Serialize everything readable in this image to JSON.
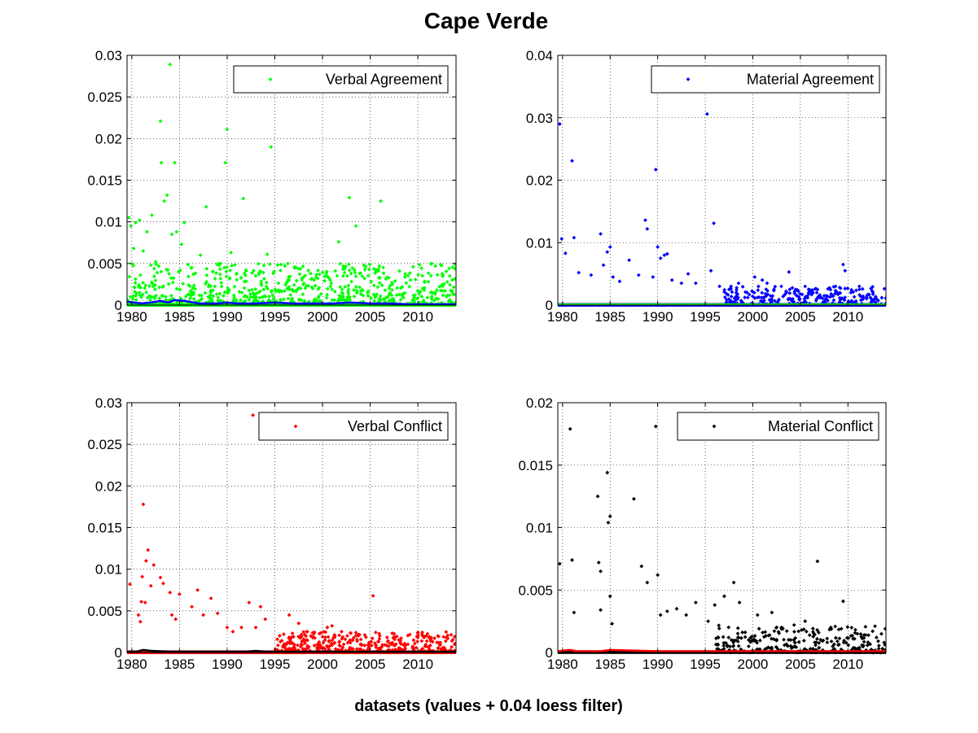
{
  "figure": {
    "title": "Cape Verde",
    "xlabel": "datasets (values + 0.04 loess filter)"
  },
  "chart_data": [
    {
      "type": "scatter",
      "grid": true,
      "legend_position": "top-right",
      "xlim": [
        1979.5,
        2014
      ],
      "ylim": [
        0,
        0.03
      ],
      "xticks": [
        1980,
        1985,
        1990,
        1995,
        2000,
        2005,
        2010
      ],
      "xtick_labels": [
        "1980",
        "1985",
        "1990",
        "1995",
        "2000",
        "2005",
        "2010"
      ],
      "yticks": [
        0,
        0.005,
        0.01,
        0.015,
        0.02,
        0.025,
        0.03
      ],
      "ytick_labels": [
        "0",
        "0.005",
        "0.01",
        "0.015",
        "0.02",
        "0.025",
        "0.03"
      ],
      "series": [
        {
          "name": "Verbal Agreement",
          "color": "#00ff00",
          "marker": "diamond",
          "points": [
            [
              1979.7,
              0.0105
            ],
            [
              1979.9,
              0.0095
            ],
            [
              1980.2,
              0.0068
            ],
            [
              1980.4,
              0.0099
            ],
            [
              1980.8,
              0.0102
            ],
            [
              1981.2,
              0.0065
            ],
            [
              1981.6,
              0.0088
            ],
            [
              1982.1,
              0.0108
            ],
            [
              1982.5,
              0.0052
            ],
            [
              1983.0,
              0.0221
            ],
            [
              1983.1,
              0.0171
            ],
            [
              1983.4,
              0.0125
            ],
            [
              1983.7,
              0.0132
            ],
            [
              1984.0,
              0.0289
            ],
            [
              1984.2,
              0.0085
            ],
            [
              1984.5,
              0.0171
            ],
            [
              1984.7,
              0.0088
            ],
            [
              1985.2,
              0.0073
            ],
            [
              1985.5,
              0.0099
            ],
            [
              1986.3,
              0.0045
            ],
            [
              1987.2,
              0.006
            ],
            [
              1987.8,
              0.0118
            ],
            [
              1988.5,
              0.004
            ],
            [
              1989.3,
              0.005
            ],
            [
              1989.8,
              0.0171
            ],
            [
              1990.0,
              0.0211
            ],
            [
              1990.4,
              0.0063
            ],
            [
              1991.0,
              0.0038
            ],
            [
              1991.7,
              0.0128
            ],
            [
              1993.0,
              0.0035
            ],
            [
              1994.2,
              0.0061
            ],
            [
              1994.6,
              0.019
            ],
            [
              1995.3,
              0.0048
            ],
            [
              1996.5,
              0.003
            ],
            [
              1998.0,
              0.0025
            ],
            [
              1999.5,
              0.0032
            ],
            [
              2000.8,
              0.003
            ],
            [
              2001.7,
              0.0076
            ],
            [
              2002.8,
              0.0129
            ],
            [
              2003.5,
              0.0095
            ],
            [
              2004.4,
              0.0032
            ],
            [
              2005.1,
              0.0028
            ],
            [
              2006.1,
              0.0125
            ],
            [
              2007.0,
              0.002
            ],
            [
              2009.5,
              0.0046
            ],
            [
              2010.5,
              0.002
            ],
            [
              2012.0,
              0.0018
            ],
            [
              2013.0,
              0.001
            ]
          ],
          "baseline_band": {
            "from": 1979.5,
            "to": 2014,
            "max": 0.005,
            "count": 800,
            "seed": 11
          }
        },
        {
          "name": "",
          "color": "#0000ff",
          "type": "line",
          "x": [
            1979.5,
            1981,
            1982,
            1983,
            1983.8,
            1984.5,
            1985.5,
            1987,
            1989,
            1990,
            1991,
            1993,
            1995,
            1997,
            1999,
            2001,
            2003,
            2005,
            2007,
            2009,
            2011,
            2013,
            2014
          ],
          "y": [
            0.0004,
            0.0002,
            0.0003,
            0.0005,
            0.0003,
            0.0006,
            0.0005,
            0.0002,
            0.0002,
            0.0003,
            0.0002,
            0.0002,
            0.0003,
            0.0002,
            0.0002,
            0.0002,
            0.0003,
            0.0002,
            0.0002,
            0.0001,
            0.0001,
            0.0001,
            0.0001
          ]
        }
      ]
    },
    {
      "type": "scatter",
      "grid": true,
      "legend_position": "top-right",
      "xlim": [
        1979.5,
        2014
      ],
      "ylim": [
        0,
        0.04
      ],
      "xticks": [
        1980,
        1985,
        1990,
        1995,
        2000,
        2005,
        2010
      ],
      "xtick_labels": [
        "1980",
        "1985",
        "1990",
        "1995",
        "2000",
        "2005",
        "2010"
      ],
      "yticks": [
        0,
        0.01,
        0.02,
        0.03,
        0.04
      ],
      "ytick_labels": [
        "0",
        "0.01",
        "0.02",
        "0.03",
        "0.04"
      ],
      "series": [
        {
          "name": "Material Agreement",
          "color": "#0000ff",
          "marker": "diamond",
          "points": [
            [
              1979.7,
              0.029
            ],
            [
              1979.9,
              0.0106
            ],
            [
              1980.3,
              0.0083
            ],
            [
              1981.0,
              0.0231
            ],
            [
              1981.2,
              0.0108
            ],
            [
              1981.7,
              0.0052
            ],
            [
              1983.0,
              0.0048
            ],
            [
              1984.0,
              0.0114
            ],
            [
              1984.3,
              0.0064
            ],
            [
              1984.7,
              0.0085
            ],
            [
              1985.0,
              0.0093
            ],
            [
              1985.3,
              0.0045
            ],
            [
              1986.0,
              0.0038
            ],
            [
              1987.0,
              0.0072
            ],
            [
              1988.0,
              0.0048
            ],
            [
              1988.7,
              0.0136
            ],
            [
              1988.9,
              0.0122
            ],
            [
              1989.5,
              0.0045
            ],
            [
              1989.8,
              0.0217
            ],
            [
              1990.0,
              0.0093
            ],
            [
              1990.3,
              0.0075
            ],
            [
              1990.7,
              0.008
            ],
            [
              1991.0,
              0.0082
            ],
            [
              1991.5,
              0.004
            ],
            [
              1992.5,
              0.0035
            ],
            [
              1993.2,
              0.005
            ],
            [
              1994.0,
              0.0035
            ],
            [
              1995.2,
              0.0306
            ],
            [
              1995.6,
              0.0055
            ],
            [
              1995.9,
              0.0131
            ],
            [
              1996.5,
              0.003
            ],
            [
              1997.5,
              0.0025
            ],
            [
              1998.5,
              0.0035
            ],
            [
              1999.4,
              0.002
            ],
            [
              2000.2,
              0.0045
            ],
            [
              2001.0,
              0.004
            ],
            [
              2001.5,
              0.0035
            ],
            [
              2003.0,
              0.003
            ],
            [
              2003.8,
              0.0053
            ],
            [
              2004.5,
              0.0025
            ],
            [
              2005.5,
              0.003
            ],
            [
              2006.8,
              0.0025
            ],
            [
              2007.5,
              0.0015
            ],
            [
              2008.7,
              0.003
            ],
            [
              2009.5,
              0.0065
            ],
            [
              2009.7,
              0.0055
            ],
            [
              2011.2,
              0.003
            ],
            [
              2012.0,
              0.0015
            ],
            [
              2013.0,
              0.001
            ]
          ],
          "baseline_band": {
            "from": 1997,
            "to": 2014,
            "max": 0.003,
            "count": 320,
            "seed": 23
          }
        },
        {
          "name": "",
          "color": "#00ff00",
          "type": "line",
          "x": [
            1979.5,
            2014
          ],
          "y": [
            0.0001,
            0.0001
          ]
        }
      ]
    },
    {
      "type": "scatter",
      "grid": true,
      "legend_position": "top-right",
      "xlim": [
        1979.5,
        2014
      ],
      "ylim": [
        0,
        0.03
      ],
      "xticks": [
        1980,
        1985,
        1990,
        1995,
        2000,
        2005,
        2010
      ],
      "xtick_labels": [
        "1980",
        "1985",
        "1990",
        "1995",
        "2000",
        "2005",
        "2010"
      ],
      "yticks": [
        0,
        0.005,
        0.01,
        0.015,
        0.02,
        0.025,
        0.03
      ],
      "ytick_labels": [
        "0",
        "0.005",
        "0.01",
        "0.015",
        "0.02",
        "0.025",
        "0.03"
      ],
      "series": [
        {
          "name": "Verbal Conflict",
          "color": "#ff0000",
          "marker": "diamond",
          "points": [
            [
              1979.8,
              0.0082
            ],
            [
              1980.7,
              0.0045
            ],
            [
              1980.9,
              0.0037
            ],
            [
              1981.0,
              0.0061
            ],
            [
              1981.1,
              0.0091
            ],
            [
              1981.2,
              0.0178
            ],
            [
              1981.4,
              0.006
            ],
            [
              1981.5,
              0.011
            ],
            [
              1981.7,
              0.0123
            ],
            [
              1982.0,
              0.008
            ],
            [
              1982.3,
              0.0105
            ],
            [
              1983.0,
              0.009
            ],
            [
              1983.3,
              0.0083
            ],
            [
              1984.0,
              0.0072
            ],
            [
              1984.2,
              0.0045
            ],
            [
              1984.6,
              0.004
            ],
            [
              1985.0,
              0.007
            ],
            [
              1986.3,
              0.0055
            ],
            [
              1986.9,
              0.0075
            ],
            [
              1987.5,
              0.0045
            ],
            [
              1988.3,
              0.0065
            ],
            [
              1989.0,
              0.0047
            ],
            [
              1990.0,
              0.003
            ],
            [
              1990.6,
              0.0025
            ],
            [
              1991.5,
              0.003
            ],
            [
              1992.3,
              0.006
            ],
            [
              1992.7,
              0.0285
            ],
            [
              1993.0,
              0.003
            ],
            [
              1993.5,
              0.0055
            ],
            [
              1994.0,
              0.004
            ],
            [
              1995.5,
              0.002
            ],
            [
              1996.5,
              0.0045
            ],
            [
              1997.5,
              0.0035
            ],
            [
              1998.4,
              0.0025
            ],
            [
              2000.5,
              0.003
            ],
            [
              2001.0,
              0.0032
            ],
            [
              2002.0,
              0.0025
            ],
            [
              2003.5,
              0.002
            ],
            [
              2005.3,
              0.0068
            ],
            [
              2006.0,
              0.002
            ],
            [
              2008.0,
              0.0015
            ],
            [
              2010.0,
              0.0018
            ],
            [
              2012.0,
              0.0012
            ]
          ],
          "baseline_band": {
            "from": 1995,
            "to": 2014,
            "max": 0.0025,
            "count": 420,
            "seed": 37
          }
        },
        {
          "name": "",
          "color": "#000000",
          "type": "line",
          "x": [
            1979.5,
            1980.5,
            1981.2,
            1982,
            1984,
            1986,
            1988,
            1990,
            1992,
            1993,
            1994,
            1996,
            2000,
            2005,
            2010,
            2014
          ],
          "y": [
            0.0001,
            0.0001,
            0.0003,
            0.0002,
            0.0001,
            0.0001,
            0.0001,
            0.0001,
            0.0001,
            0.0002,
            0.0001,
            0.0001,
            0.0001,
            0.0001,
            0.0001,
            0.0001
          ]
        }
      ]
    },
    {
      "type": "scatter",
      "grid": true,
      "legend_position": "top-right",
      "xlim": [
        1979.5,
        2014
      ],
      "ylim": [
        0,
        0.02
      ],
      "xticks": [
        1980,
        1985,
        1990,
        1995,
        2000,
        2005,
        2010
      ],
      "xtick_labels": [
        "1980",
        "1985",
        "1990",
        "1995",
        "2000",
        "2005",
        "2010"
      ],
      "yticks": [
        0,
        0.005,
        0.01,
        0.015,
        0.02
      ],
      "ytick_labels": [
        "0",
        "0.005",
        "0.01",
        "0.015",
        "0.02"
      ],
      "series": [
        {
          "name": "Material Conflict",
          "color": "#000000",
          "marker": "diamond",
          "points": [
            [
              1979.7,
              0.0071
            ],
            [
              1980.8,
              0.0179
            ],
            [
              1981.0,
              0.0074
            ],
            [
              1981.2,
              0.0032
            ],
            [
              1983.7,
              0.0125
            ],
            [
              1983.8,
              0.0072
            ],
            [
              1984.0,
              0.0065
            ],
            [
              1984.0,
              0.0034
            ],
            [
              1984.7,
              0.0144
            ],
            [
              1984.8,
              0.0104
            ],
            [
              1985.0,
              0.0109
            ],
            [
              1985.0,
              0.0045
            ],
            [
              1985.2,
              0.0023
            ],
            [
              1987.5,
              0.0123
            ],
            [
              1988.3,
              0.0069
            ],
            [
              1988.9,
              0.0056
            ],
            [
              1989.8,
              0.0181
            ],
            [
              1990.0,
              0.0062
            ],
            [
              1990.3,
              0.003
            ],
            [
              1991.0,
              0.0033
            ],
            [
              1992.0,
              0.0035
            ],
            [
              1993.0,
              0.003
            ],
            [
              1994.0,
              0.004
            ],
            [
              1995.3,
              0.0025
            ],
            [
              1996.0,
              0.0038
            ],
            [
              1997.0,
              0.0045
            ],
            [
              1998.0,
              0.0056
            ],
            [
              1998.6,
              0.004
            ],
            [
              2000.5,
              0.003
            ],
            [
              2002.0,
              0.0032
            ],
            [
              2003.0,
              0.002
            ],
            [
              2005.5,
              0.0025
            ],
            [
              2006.8,
              0.0073
            ],
            [
              2008.2,
              0.002
            ],
            [
              2009.5,
              0.0041
            ],
            [
              2011.0,
              0.0015
            ],
            [
              2013.0,
              0.0012
            ]
          ],
          "baseline_band": {
            "from": 1996,
            "to": 2014,
            "max": 0.0022,
            "count": 320,
            "seed": 53
          }
        },
        {
          "name": "",
          "color": "#ff0000",
          "type": "line",
          "x": [
            1979.5,
            1980.8,
            1981.5,
            1984,
            1985,
            1990,
            1995,
            2000,
            2005,
            2010,
            2014
          ],
          "y": [
            0.0001,
            0.0002,
            0.0001,
            0.0001,
            0.0002,
            0.0001,
            0.0001,
            0.0001,
            0.0001,
            0.0001,
            0.0001
          ]
        }
      ]
    }
  ]
}
